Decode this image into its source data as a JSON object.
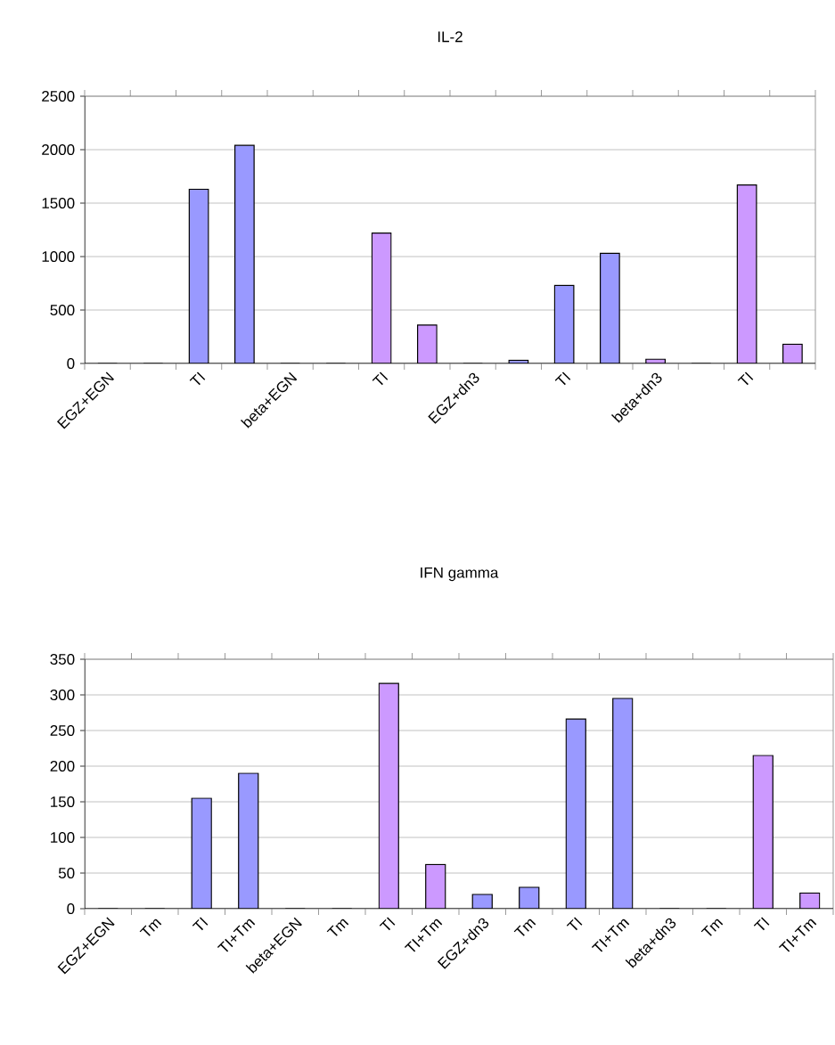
{
  "chart_data": [
    {
      "type": "bar",
      "title": "IL-2",
      "categories": [
        "EGZ+EGN",
        null,
        "TI",
        null,
        "beta+EGN",
        null,
        "TI",
        null,
        "EGZ+dn3",
        null,
        "TI",
        null,
        "beta+dn3",
        null,
        "TI",
        null
      ],
      "values": [
        0,
        0,
        1630,
        2040,
        0,
        0,
        1220,
        360,
        0,
        30,
        730,
        1030,
        40,
        0,
        1670,
        180
      ],
      "colors": [
        "#9999ff",
        "#9999ff",
        "#9999ff",
        "#9999ff",
        "#cc99ff",
        "#cc99ff",
        "#cc99ff",
        "#cc99ff",
        "#9999ff",
        "#9999ff",
        "#9999ff",
        "#9999ff",
        "#cc99ff",
        "#cc99ff",
        "#cc99ff",
        "#cc99ff"
      ],
      "ylim": [
        0,
        2500
      ],
      "yticks": [
        0,
        500,
        1000,
        1500,
        2000,
        2500
      ],
      "grid": "y"
    },
    {
      "type": "bar",
      "title": "IFN gamma",
      "categories": [
        "EGZ+EGN",
        "Tm",
        "TI",
        "TI+Tm",
        "beta+EGN",
        "Tm",
        "TI",
        "TI+Tm",
        "EGZ+dn3",
        "Tm",
        "TI",
        "TI+Tm",
        "beta+dn3",
        "Tm",
        "TI",
        "TI+Tm"
      ],
      "values": [
        0,
        0,
        155,
        190,
        0,
        0,
        316,
        62,
        20,
        30,
        266,
        295,
        0,
        0,
        215,
        22
      ],
      "colors": [
        "#9999ff",
        "#9999ff",
        "#9999ff",
        "#9999ff",
        "#cc99ff",
        "#cc99ff",
        "#cc99ff",
        "#cc99ff",
        "#9999ff",
        "#9999ff",
        "#9999ff",
        "#9999ff",
        "#cc99ff",
        "#cc99ff",
        "#cc99ff",
        "#cc99ff"
      ],
      "ylim": [
        0,
        350
      ],
      "yticks": [
        0,
        50,
        100,
        150,
        200,
        250,
        300,
        350
      ],
      "grid": "y"
    }
  ]
}
